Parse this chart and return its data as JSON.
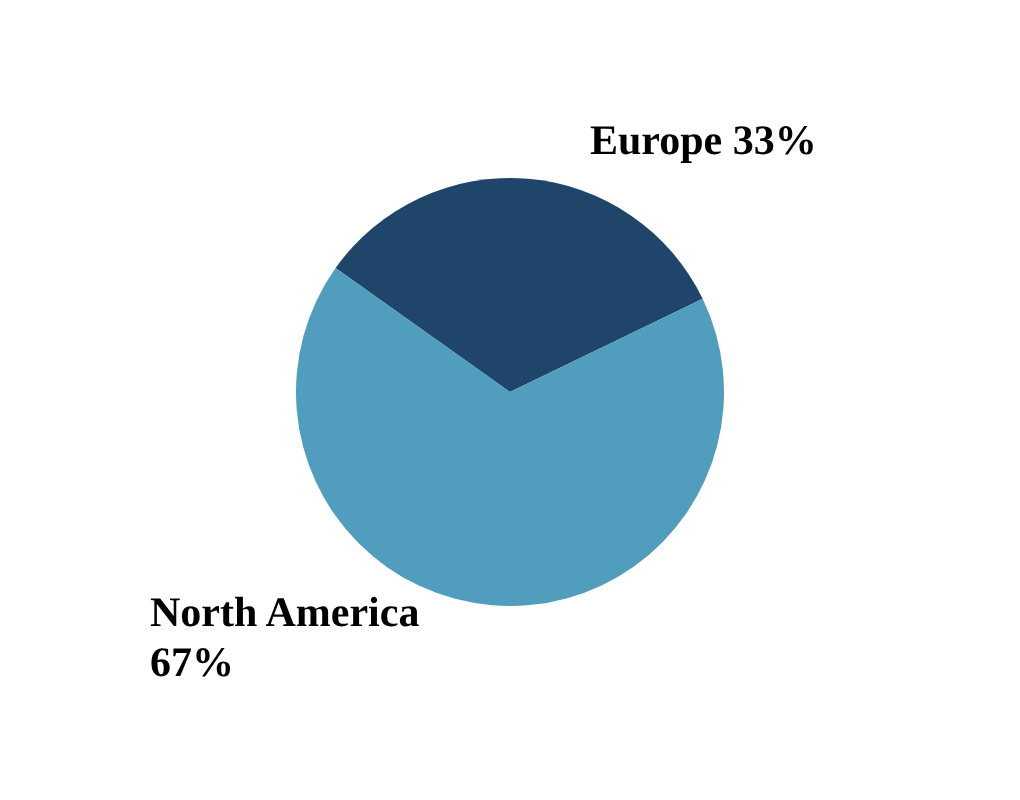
{
  "chart_data": {
    "type": "pie",
    "categories": [
      "Europe",
      "North America"
    ],
    "values": [
      33,
      67
    ],
    "colors": [
      "#1f456b",
      "#509dbd"
    ],
    "value_labels": [
      "33%",
      "67%"
    ]
  }
}
